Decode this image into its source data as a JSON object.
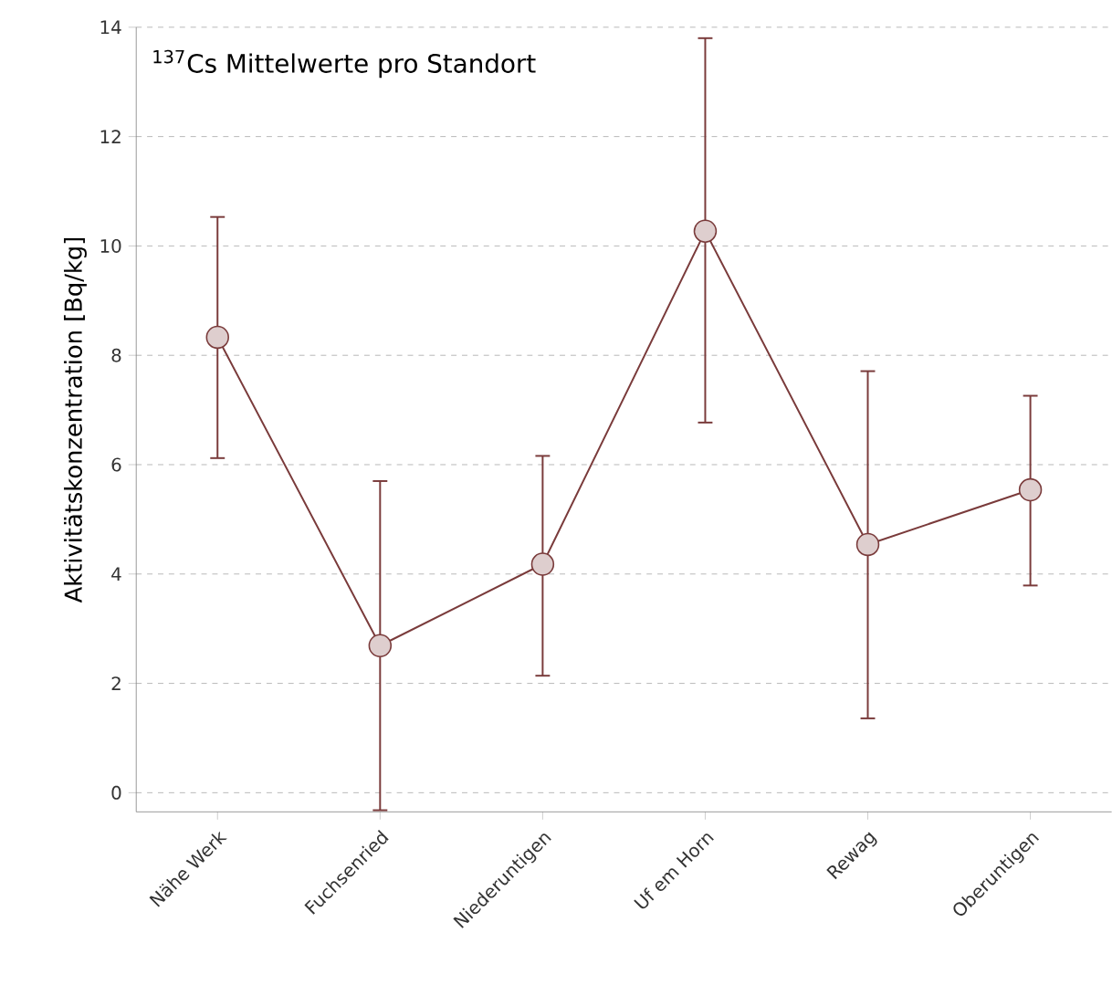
{
  "chart_data": {
    "type": "line",
    "title": "$^{137}$Cs Mittelwerte pro Standort",
    "ylabel": "Aktivitätskonzentration [Bq/kg]",
    "categories": [
      "Nähe Werk",
      "Fuchsenried",
      "Niederuntigen",
      "Uf em Horn",
      "Rewag",
      "Oberuntigen"
    ],
    "series": [
      {
        "color": "#7a3b3b",
        "values": [
          8.33,
          2.69,
          4.18,
          10.27,
          4.54,
          5.54
        ],
        "errors": [
          [
            6.12,
            10.53
          ],
          [
            -0.32,
            5.7
          ],
          [
            2.14,
            6.16
          ],
          [
            6.77,
            13.8
          ],
          [
            1.36,
            7.71
          ],
          [
            3.79,
            7.26
          ]
        ]
      }
    ],
    "ylim": [
      -0.35,
      14
    ],
    "yticks": [
      0,
      2,
      4,
      6,
      8,
      10,
      12,
      14
    ],
    "grid": "y",
    "marker": "circle",
    "line_style": "solid"
  }
}
